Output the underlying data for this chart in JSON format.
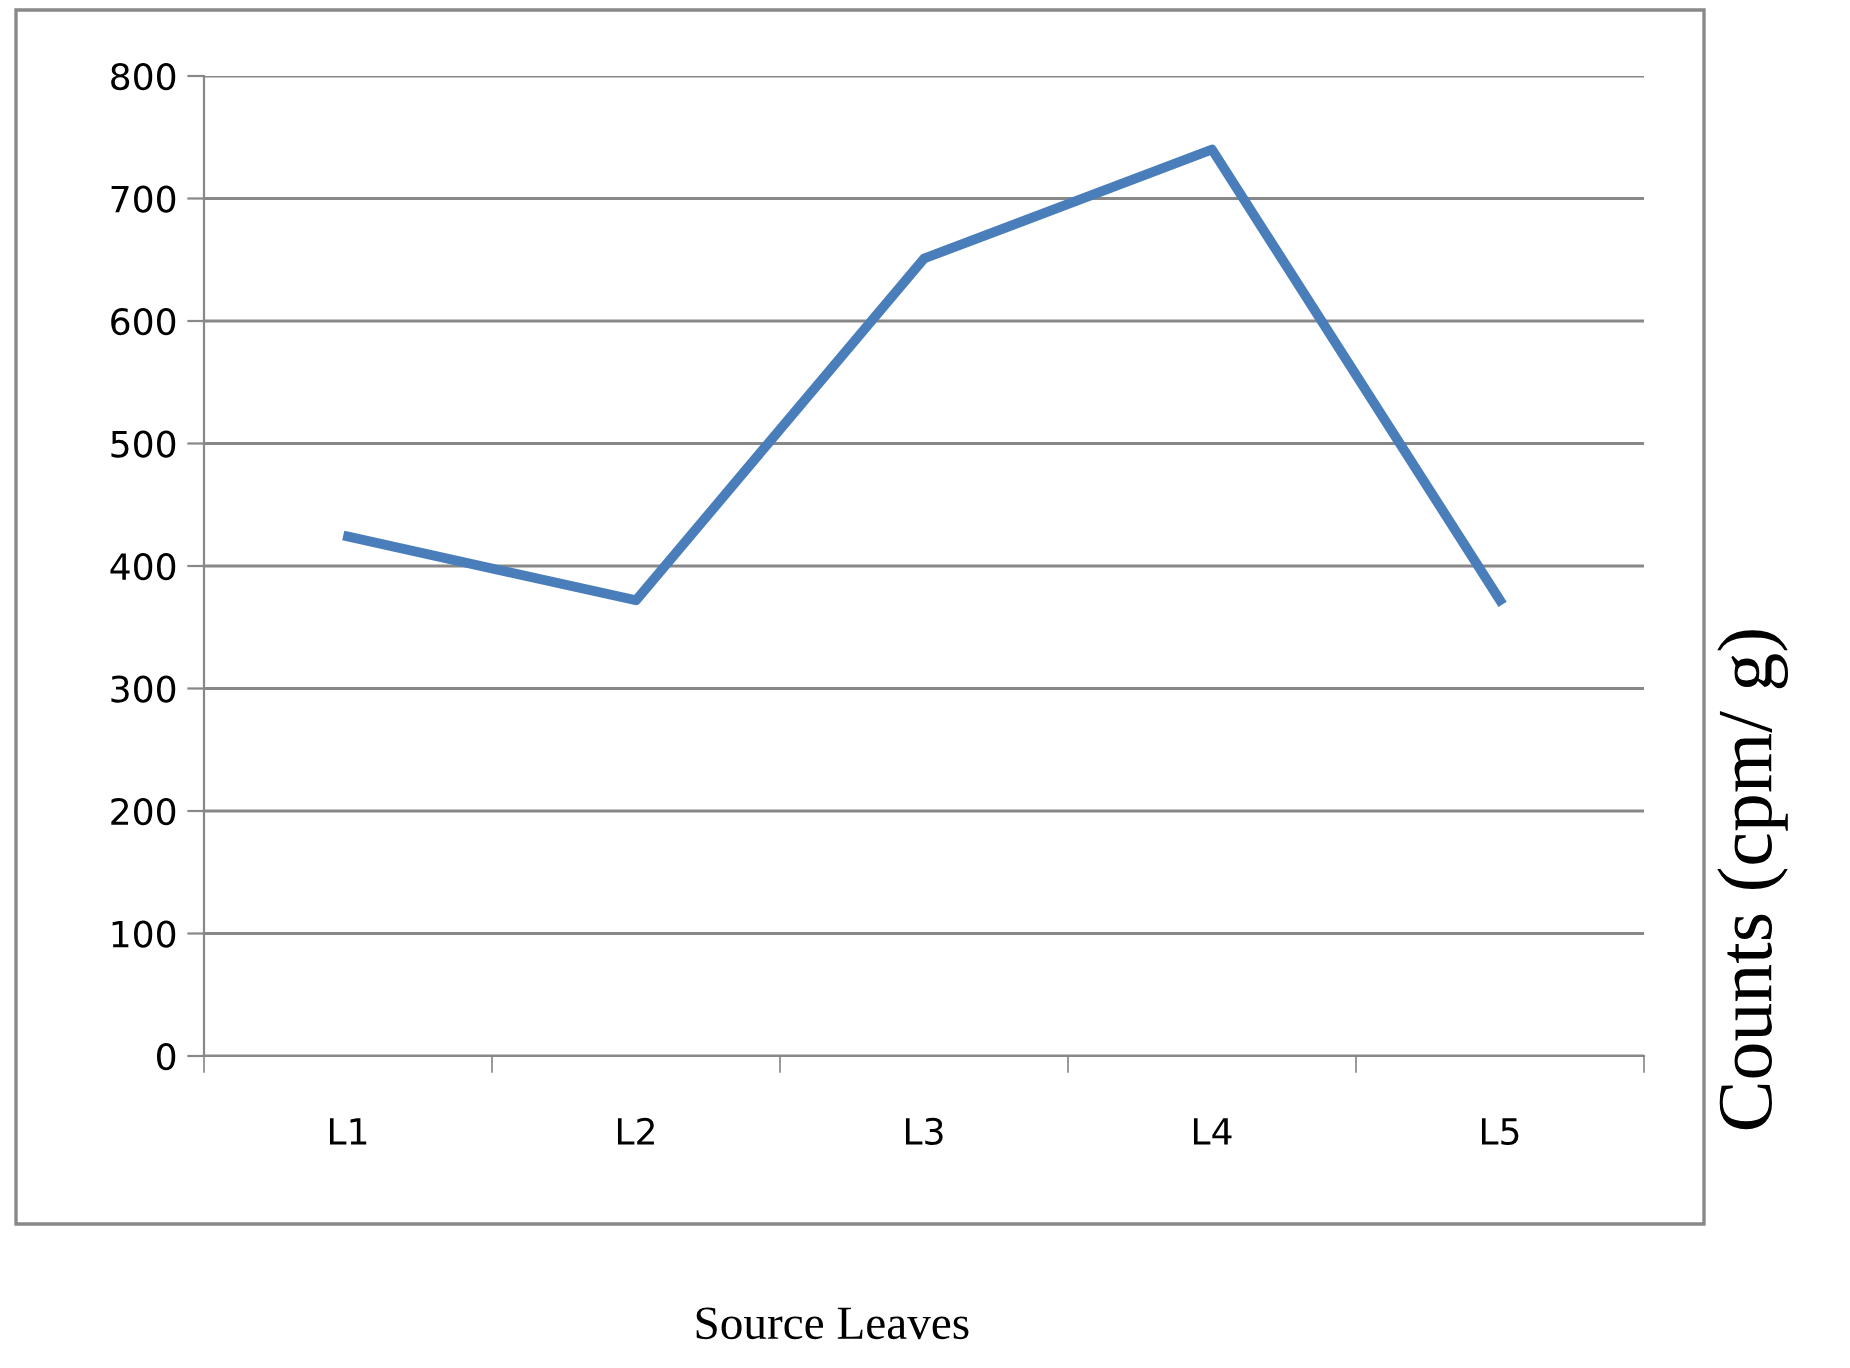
{
  "chart_data": {
    "type": "line",
    "xlabel": "Source Leaves",
    "ylabel": "Counts (cpm/ g)",
    "categories": [
      "L1",
      "L2",
      "L3",
      "L4",
      "L5"
    ],
    "series": [
      {
        "color": "#4a7ebb",
        "values": [
          424,
          372,
          651,
          740,
          372
        ]
      }
    ],
    "ylim": [
      0,
      800
    ],
    "yticks": [
      0,
      100,
      200,
      300,
      400,
      500,
      600,
      700,
      800
    ],
    "grid": "y",
    "legend": false,
    "marker": "none",
    "line_style": "solid"
  }
}
